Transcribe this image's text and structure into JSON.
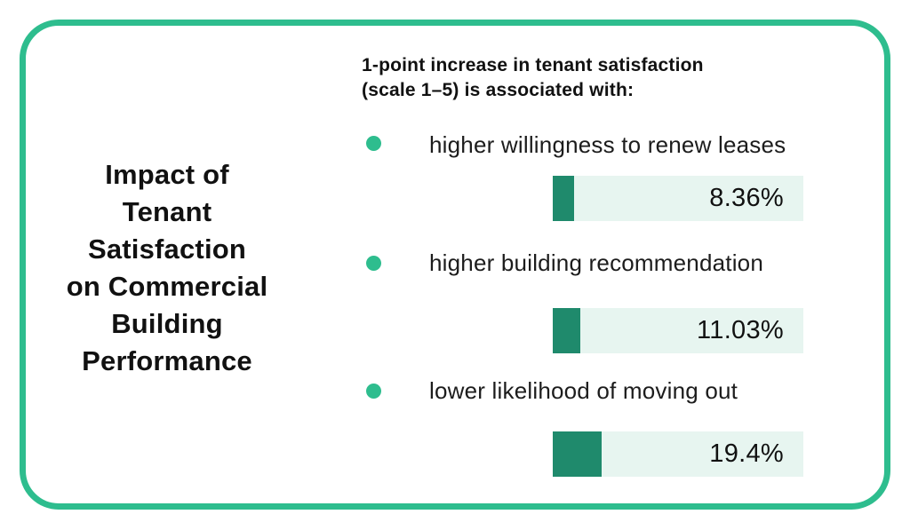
{
  "card": {
    "title": "Impact of\nTenant\nSatisfaction\non Commercial\nBuilding\nPerformance",
    "header": "1-point increase in tenant satisfaction\n(scale 1–5) is associated with:",
    "items": [
      {
        "label": "higher willingness to renew leases",
        "value_label": "8.36%",
        "percent": 8.36
      },
      {
        "label": "higher building recommendation",
        "value_label": "11.03%",
        "percent": 11.03
      },
      {
        "label": "lower likelihood of moving out",
        "value_label": "19.4%",
        "percent": 19.4
      }
    ]
  },
  "colors": {
    "accent": "#2ebd8e",
    "fill": "#1f8a6c",
    "track": "#e7f5f0",
    "ink": "#111111"
  },
  "chart_data": {
    "type": "bar",
    "orientation": "horizontal",
    "title": "Impact of Tenant Satisfaction on Commercial Building Performance",
    "subtitle": "1-point increase in tenant satisfaction (scale 1–5) is associated with:",
    "categories": [
      "higher willingness to renew leases",
      "higher building recommendation",
      "lower likelihood of moving out"
    ],
    "values": [
      8.36,
      11.03,
      19.4
    ],
    "data_labels": [
      "8.36%",
      "11.03%",
      "19.4%"
    ],
    "unit": "%",
    "xlim": [
      0,
      100
    ],
    "grid": false,
    "legend": false
  }
}
